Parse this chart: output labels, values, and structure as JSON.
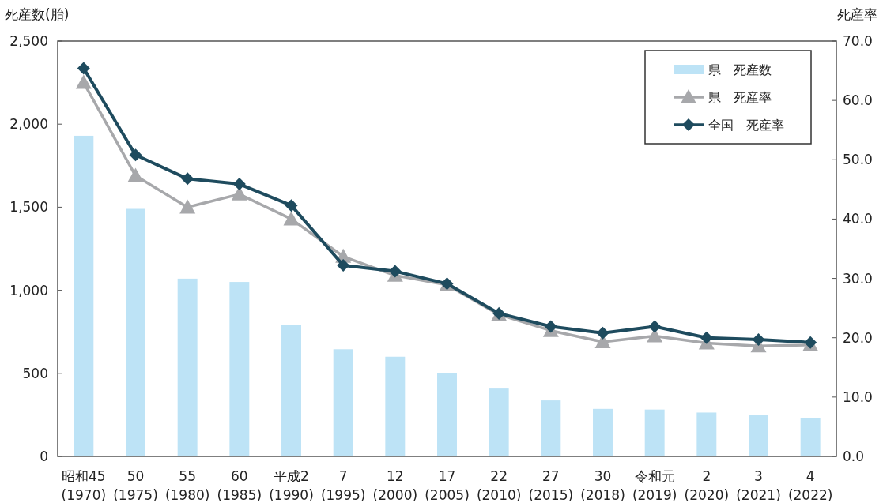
{
  "chart_data": {
    "type": "bar",
    "ylabel": "死産数(胎)",
    "y2label": "死産率",
    "categories": [
      "昭和45\n(1970)",
      "50\n(1975)",
      "55\n(1980)",
      "60\n(1985)",
      "平成2\n(1990)",
      "7\n(1995)",
      "12\n(2000)",
      "17\n(2005)",
      "22\n(2010)",
      "27\n(2015)",
      "30\n(2018)",
      "令和元\n(2019)",
      "2\n(2020)",
      "3\n(2021)",
      "4\n(2022)"
    ],
    "series": [
      {
        "name": "県　死産数",
        "color": "#bde3f6",
        "values": [
          1930,
          1490,
          1070,
          1050,
          790,
          645,
          600,
          500,
          413,
          337,
          286,
          282,
          264,
          247,
          233
        ]
      },
      {
        "name": "県　死産率",
        "type": "line",
        "axis": "y2",
        "marker": "triangle",
        "color": "#a7a8ab",
        "values": [
          63.0,
          47.3,
          42.0,
          44.2,
          40.0,
          33.7,
          30.5,
          28.9,
          23.9,
          21.2,
          19.3,
          20.3,
          19.1,
          18.6,
          18.8
        ]
      },
      {
        "name": "全国　死産率",
        "type": "line",
        "axis": "y2",
        "marker": "diamond",
        "color": "#1e4b5e",
        "values": [
          65.4,
          50.8,
          46.8,
          45.9,
          42.3,
          32.2,
          31.2,
          29.1,
          24.1,
          21.9,
          20.8,
          21.9,
          20.0,
          19.7,
          19.2
        ]
      }
    ],
    "ylim": [
      0,
      2500
    ],
    "yticks": [
      0,
      {
        "value": 500,
        "label": "500"
      },
      {
        "value": 1000,
        "label": "1,000"
      },
      {
        "value": 1500,
        "label": "1,500"
      },
      {
        "value": 2000,
        "label": "2,000"
      },
      {
        "value": 2500,
        "label": "2,500"
      }
    ],
    "y2lim": [
      0,
      70
    ],
    "y2ticks": [
      {
        "value": 0,
        "label": "0.0"
      },
      {
        "value": 10,
        "label": "10.0"
      },
      {
        "value": 20,
        "label": "20.0"
      },
      {
        "value": 30,
        "label": "30.0"
      },
      {
        "value": 40,
        "label": "40.0"
      },
      {
        "value": 50,
        "label": "50.0"
      },
      {
        "value": 60,
        "label": "60.0"
      },
      {
        "value": 70,
        "label": "70.0"
      }
    ],
    "grid": false,
    "legend": "top right",
    "line_style": "solid"
  }
}
